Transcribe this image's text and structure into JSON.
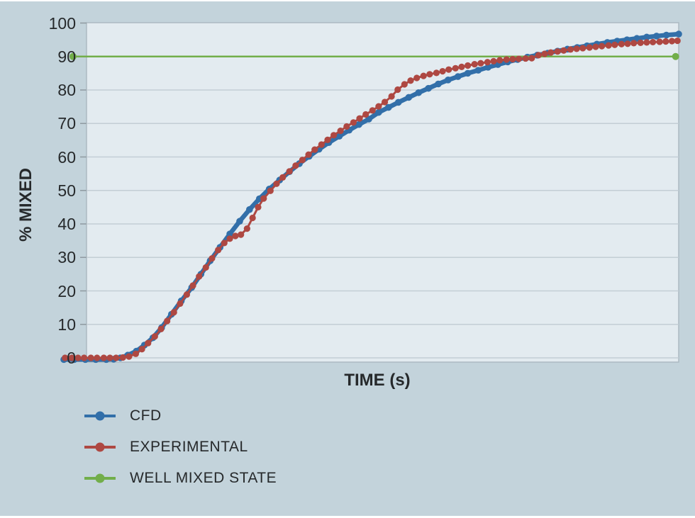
{
  "palette": {
    "page_background": "#c3d3db",
    "plot_background": "#e3ebf0",
    "gridline": "#c3ced5",
    "plot_border": "#adbac2",
    "tick_mark": "#8f9aa1",
    "text": "#26292b"
  },
  "chart_data": {
    "type": "line",
    "title": "",
    "xlabel": "TIME (s)",
    "ylabel": "% MIXED",
    "x_tick_labels_visible": false,
    "x_range": [
      0,
      100
    ],
    "ylim": [
      0,
      100
    ],
    "y_ticks": [
      0,
      10,
      20,
      30,
      40,
      50,
      60,
      70,
      80,
      90,
      100
    ],
    "grid": true,
    "legend_position": "bottom-left",
    "reference_line_value": 90,
    "series": [
      {
        "name": "CFD",
        "color": "#326fa9",
        "style": "thick line with round markers",
        "points": [
          [
            0,
            -0.5
          ],
          [
            1.7,
            -0.5
          ],
          [
            3.5,
            -0.5
          ],
          [
            5.2,
            -0.5
          ],
          [
            6.9,
            -0.5
          ],
          [
            8.1,
            -0.4
          ],
          [
            9.2,
            0
          ],
          [
            10.4,
            0.8
          ],
          [
            11.8,
            2
          ],
          [
            13.1,
            3.8
          ],
          [
            14.5,
            6
          ],
          [
            15.9,
            9
          ],
          [
            17.5,
            13
          ],
          [
            19.1,
            17
          ],
          [
            20.8,
            21
          ],
          [
            22.3,
            25
          ],
          [
            23.8,
            29
          ],
          [
            25.4,
            33
          ],
          [
            27,
            37
          ],
          [
            28.6,
            40.8
          ],
          [
            30.2,
            44.3
          ],
          [
            31.8,
            47.5
          ],
          [
            33.4,
            50.4
          ],
          [
            35.1,
            53.1
          ],
          [
            36.7,
            55.6
          ],
          [
            38.3,
            58
          ],
          [
            39.9,
            60.2
          ],
          [
            41.5,
            62.3
          ],
          [
            43.1,
            64.3
          ],
          [
            44.8,
            66.2
          ],
          [
            46.4,
            68
          ],
          [
            48,
            69.7
          ],
          [
            49.6,
            71.3
          ],
          [
            51.2,
            73.3
          ],
          [
            52.8,
            74.8
          ],
          [
            54.4,
            76.3
          ],
          [
            56.1,
            77.8
          ],
          [
            57.7,
            79.2
          ],
          [
            59.3,
            80.5
          ],
          [
            60.9,
            81.8
          ],
          [
            62.5,
            83
          ],
          [
            64.1,
            84
          ],
          [
            65.7,
            85
          ],
          [
            67.4,
            85.9
          ],
          [
            69,
            86.8
          ],
          [
            70.6,
            87.6
          ],
          [
            72.2,
            88.4
          ],
          [
            73.8,
            89.1
          ],
          [
            75.4,
            89.8
          ],
          [
            77,
            90.4
          ],
          [
            78.7,
            91
          ],
          [
            80.3,
            91.6
          ],
          [
            81.9,
            92.2
          ],
          [
            83.5,
            92.7
          ],
          [
            85.1,
            93.2
          ],
          [
            86.7,
            93.7
          ],
          [
            88.4,
            94.2
          ],
          [
            90,
            94.6
          ],
          [
            91.6,
            95
          ],
          [
            93.2,
            95.4
          ],
          [
            94.8,
            95.8
          ],
          [
            96.4,
            96.1
          ],
          [
            98,
            96.4
          ],
          [
            100,
            96.7
          ]
        ]
      },
      {
        "name": "EXPERIMENTAL",
        "color": "#ae4842",
        "style": "line with dot markers",
        "points": [
          [
            0.2,
            0
          ],
          [
            1.3,
            0
          ],
          [
            2.3,
            0
          ],
          [
            3.3,
            0
          ],
          [
            4.4,
            0
          ],
          [
            5.4,
            0
          ],
          [
            6.5,
            0
          ],
          [
            7.5,
            0
          ],
          [
            8.5,
            0
          ],
          [
            9.6,
            0.1
          ],
          [
            10.6,
            0.4
          ],
          [
            11.7,
            1.2
          ],
          [
            12.7,
            2.6
          ],
          [
            13.7,
            4.4
          ],
          [
            14.8,
            6.4
          ],
          [
            15.8,
            8.6
          ],
          [
            16.8,
            11
          ],
          [
            17.9,
            13.6
          ],
          [
            18.9,
            16.2
          ],
          [
            20,
            18.9
          ],
          [
            21,
            21.6
          ],
          [
            22,
            24.3
          ],
          [
            23.1,
            27
          ],
          [
            24.1,
            29.7
          ],
          [
            25.1,
            32.2
          ],
          [
            26.1,
            34.3
          ],
          [
            27,
            35.6
          ],
          [
            27.9,
            36.4
          ],
          [
            28.8,
            36.8
          ],
          [
            29.8,
            38.6
          ],
          [
            30.7,
            41.8
          ],
          [
            31.6,
            45
          ],
          [
            32.5,
            47.6
          ],
          [
            33.6,
            49.9
          ],
          [
            34.6,
            52
          ],
          [
            35.6,
            53.9
          ],
          [
            36.7,
            55.7
          ],
          [
            37.7,
            57.4
          ],
          [
            38.8,
            59.1
          ],
          [
            39.8,
            60.7
          ],
          [
            40.8,
            62.2
          ],
          [
            41.9,
            63.7
          ],
          [
            42.9,
            65.1
          ],
          [
            43.9,
            66.5
          ],
          [
            45,
            67.8
          ],
          [
            46,
            69.1
          ],
          [
            47.1,
            70.3
          ],
          [
            48.1,
            71.5
          ],
          [
            49.1,
            72.7
          ],
          [
            50.2,
            73.9
          ],
          [
            51.2,
            75.1
          ],
          [
            52.2,
            76.4
          ],
          [
            53.3,
            78.1
          ],
          [
            54.3,
            80.1
          ],
          [
            55.4,
            81.7
          ],
          [
            56.4,
            82.8
          ],
          [
            57.4,
            83.6
          ],
          [
            58.5,
            84.2
          ],
          [
            59.5,
            84.7
          ],
          [
            60.6,
            85.1
          ],
          [
            61.6,
            85.6
          ],
          [
            62.6,
            86.1
          ],
          [
            63.7,
            86.5
          ],
          [
            64.7,
            86.9
          ],
          [
            65.7,
            87.3
          ],
          [
            66.8,
            87.7
          ],
          [
            67.8,
            88
          ],
          [
            68.9,
            88.3
          ],
          [
            69.9,
            88.6
          ],
          [
            70.9,
            88.9
          ],
          [
            72,
            89.1
          ],
          [
            73,
            89.2
          ],
          [
            74,
            89.3
          ],
          [
            75.1,
            89.4
          ],
          [
            76.1,
            89.5
          ],
          [
            77.2,
            90.4
          ],
          [
            78.2,
            90.8
          ],
          [
            79.2,
            91.2
          ],
          [
            80.3,
            91.5
          ],
          [
            81.3,
            91.8
          ],
          [
            82.4,
            92.1
          ],
          [
            83.4,
            92.3
          ],
          [
            84.4,
            92.5
          ],
          [
            85.5,
            92.7
          ],
          [
            86.5,
            92.9
          ],
          [
            87.5,
            93.1
          ],
          [
            88.6,
            93.3
          ],
          [
            89.6,
            93.5
          ],
          [
            90.7,
            93.7
          ],
          [
            91.7,
            93.8
          ],
          [
            92.7,
            94
          ],
          [
            93.8,
            94.1
          ],
          [
            94.8,
            94.2
          ],
          [
            95.8,
            94.3
          ],
          [
            96.9,
            94.4
          ],
          [
            97.9,
            94.5
          ],
          [
            98.9,
            94.6
          ],
          [
            99.8,
            94.7
          ]
        ]
      },
      {
        "name": "WELL MIXED STATE",
        "color": "#72ae4a",
        "style": "horizontal reference line with end dots",
        "points": [
          [
            1.5,
            90
          ],
          [
            99.5,
            90
          ]
        ]
      }
    ]
  }
}
